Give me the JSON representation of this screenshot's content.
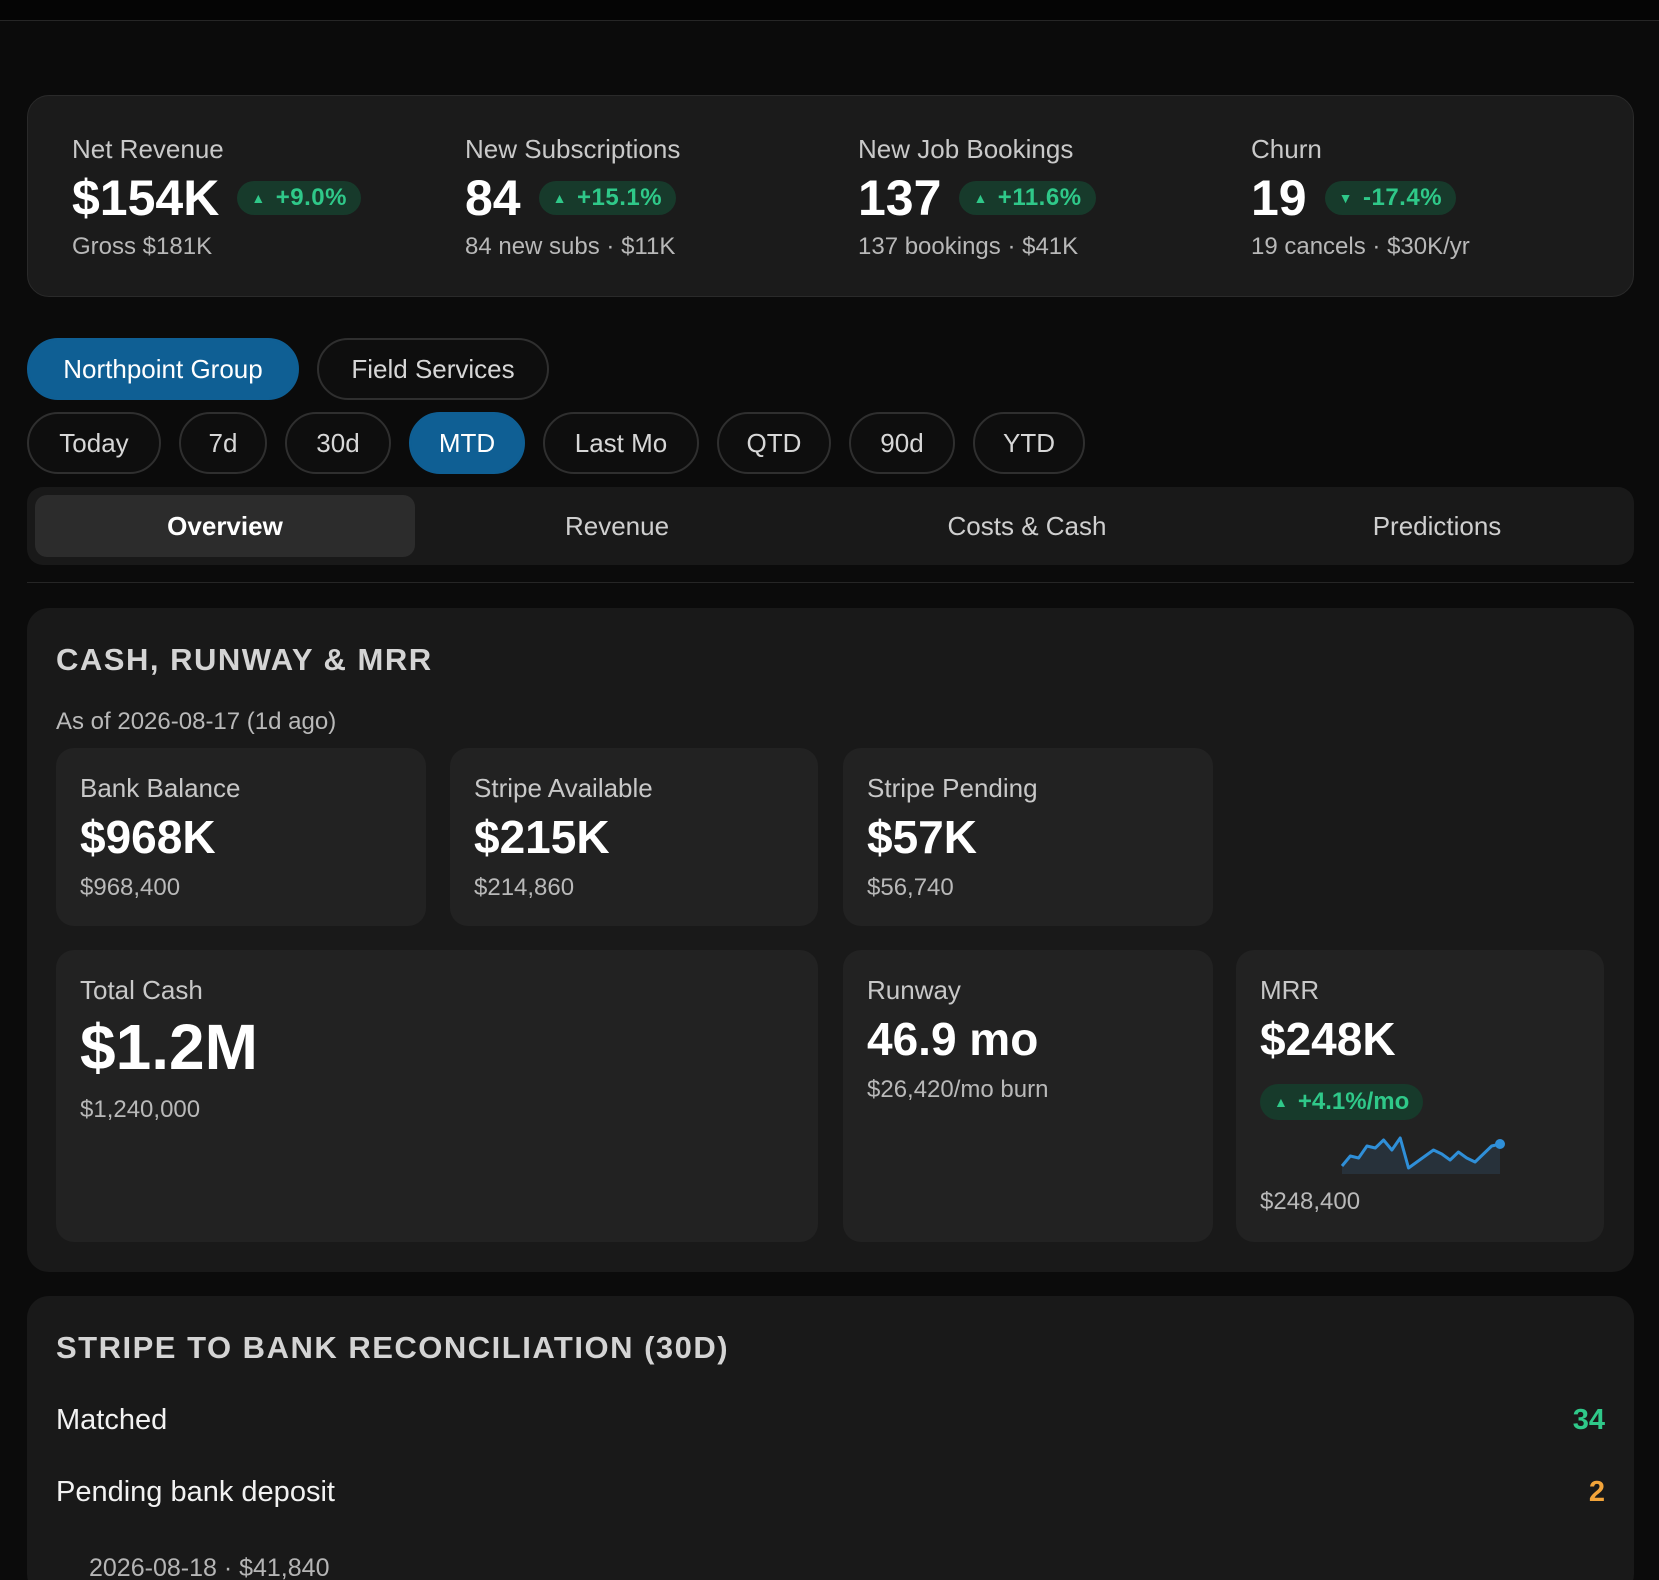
{
  "kpis": [
    {
      "label": "Net Revenue",
      "value": "$154K",
      "delta": "+9.0%",
      "direction": "up",
      "sub": "Gross $181K"
    },
    {
      "label": "New Subscriptions",
      "value": "84",
      "delta": "+15.1%",
      "direction": "up",
      "sub": "84 new subs · $11K"
    },
    {
      "label": "New Job Bookings",
      "value": "137",
      "delta": "+11.6%",
      "direction": "up",
      "sub": "137 bookings · $41K"
    },
    {
      "label": "Churn",
      "value": "19",
      "delta": "-17.4%",
      "direction": "down",
      "sub": "19 cancels · $30K/yr"
    }
  ],
  "org_filters": [
    {
      "label": "Northpoint Group",
      "active": true
    },
    {
      "label": "Field Services",
      "active": false
    }
  ],
  "period_filters": [
    {
      "label": "Today",
      "active": false
    },
    {
      "label": "7d",
      "active": false
    },
    {
      "label": "30d",
      "active": false
    },
    {
      "label": "MTD",
      "active": true
    },
    {
      "label": "Last Mo",
      "active": false
    },
    {
      "label": "QTD",
      "active": false
    },
    {
      "label": "90d",
      "active": false
    },
    {
      "label": "YTD",
      "active": false
    }
  ],
  "tabs": [
    {
      "label": "Overview",
      "active": true
    },
    {
      "label": "Revenue",
      "active": false
    },
    {
      "label": "Costs & Cash",
      "active": false
    },
    {
      "label": "Predictions",
      "active": false
    }
  ],
  "cash_panel": {
    "title": "CASH, RUNWAY & MRR",
    "as_of": "As of 2026-08-17 (1d ago)",
    "bank_balance": {
      "label": "Bank Balance",
      "value": "$968K",
      "sub": "$968,400"
    },
    "stripe_available": {
      "label": "Stripe Available",
      "value": "$215K",
      "sub": "$214,860"
    },
    "stripe_pending": {
      "label": "Stripe Pending",
      "value": "$57K",
      "sub": "$56,740"
    },
    "total_cash": {
      "label": "Total Cash",
      "value": "$1.2M",
      "sub": "$1,240,000"
    },
    "runway": {
      "label": "Runway",
      "value": "46.9 mo",
      "sub": "$26,420/mo burn"
    },
    "mrr": {
      "label": "MRR",
      "value": "$248K",
      "delta": "+4.1%/mo",
      "sub": "$248,400",
      "sparkline_color": "#2f8fd8",
      "sparkline_values": [
        0.2,
        0.45,
        0.4,
        0.7,
        0.65,
        0.85,
        0.6,
        0.9,
        0.15,
        0.3,
        0.45,
        0.6,
        0.5,
        0.35,
        0.55,
        0.4,
        0.3,
        0.5,
        0.7,
        0.75
      ]
    }
  },
  "recon_panel": {
    "title": "STRIPE TO BANK RECONCILIATION (30D)",
    "rows": [
      {
        "label": "Matched",
        "count": "34",
        "color": "#2fc889"
      },
      {
        "label": "Pending bank deposit",
        "count": "2",
        "color": "#f2a43a"
      }
    ],
    "detail": "2026-08-18 · $41,840"
  },
  "colors": {
    "up": "#2fc889",
    "down": "#2fc889",
    "accent": "#0f5f94"
  }
}
